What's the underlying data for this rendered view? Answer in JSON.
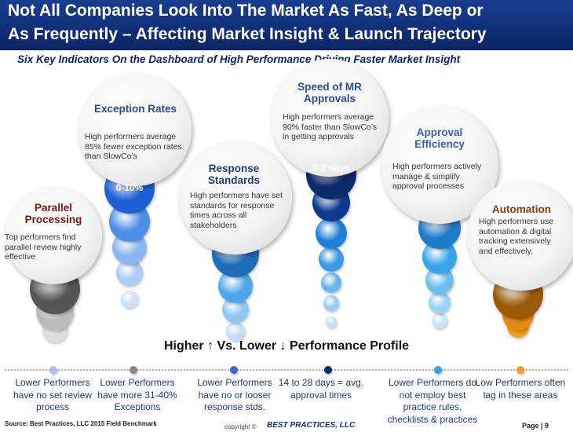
{
  "header": {
    "title": [
      "Not All Companies Look Into The Market As Fast, As Deep or",
      "As Frequently – Affecting  Market Insight & Launch Trajectory"
    ],
    "subtitle": "Six Key Indicators On the Dashboard of  High Performance Driving Faster Market Insight"
  },
  "indicators": [
    {
      "title": "Parallel Processing",
      "text": "Top performers find parallel review highly effective"
    },
    {
      "title": "Exception Rates",
      "text": "High performers average 85% fewer exception rates than SlowCo’s",
      "badge": "0-10%"
    },
    {
      "title": "Response Standards",
      "text": "High performers have set standards for response times across all stakeholders"
    },
    {
      "title": "Speed of MR Approvals",
      "text": "High performers average 90% faster than SlowCo’s in getting approvals",
      "badge": "1-2 days"
    },
    {
      "title": "Approval Efficiency",
      "text": "High performers actively manage & simplify approval processes"
    },
    {
      "title": "Automation",
      "text": "High performers use automation & digital tracking extensively and effectively."
    }
  ],
  "profile_heading": "Higher ↑ Vs. Lower ↓ Performance Profile",
  "lower_performers": [
    "Lower Performers have no set review process",
    "Lower Performers have more  31-40% Exceptions",
    "Lower Performers have no or looser response stds.",
    "14 to 28 days = avg. approval times",
    "Lower Performers do not employ best practice rules, checklists & practices",
    "Low Performers often lag in these areas"
  ],
  "footer": {
    "source": "Source: Best Practices, LLC 2015 Field Benchmark",
    "copyright": "copyright ©",
    "logo": "BEST PRACTICES, LLC",
    "page": "Page | 9"
  }
}
